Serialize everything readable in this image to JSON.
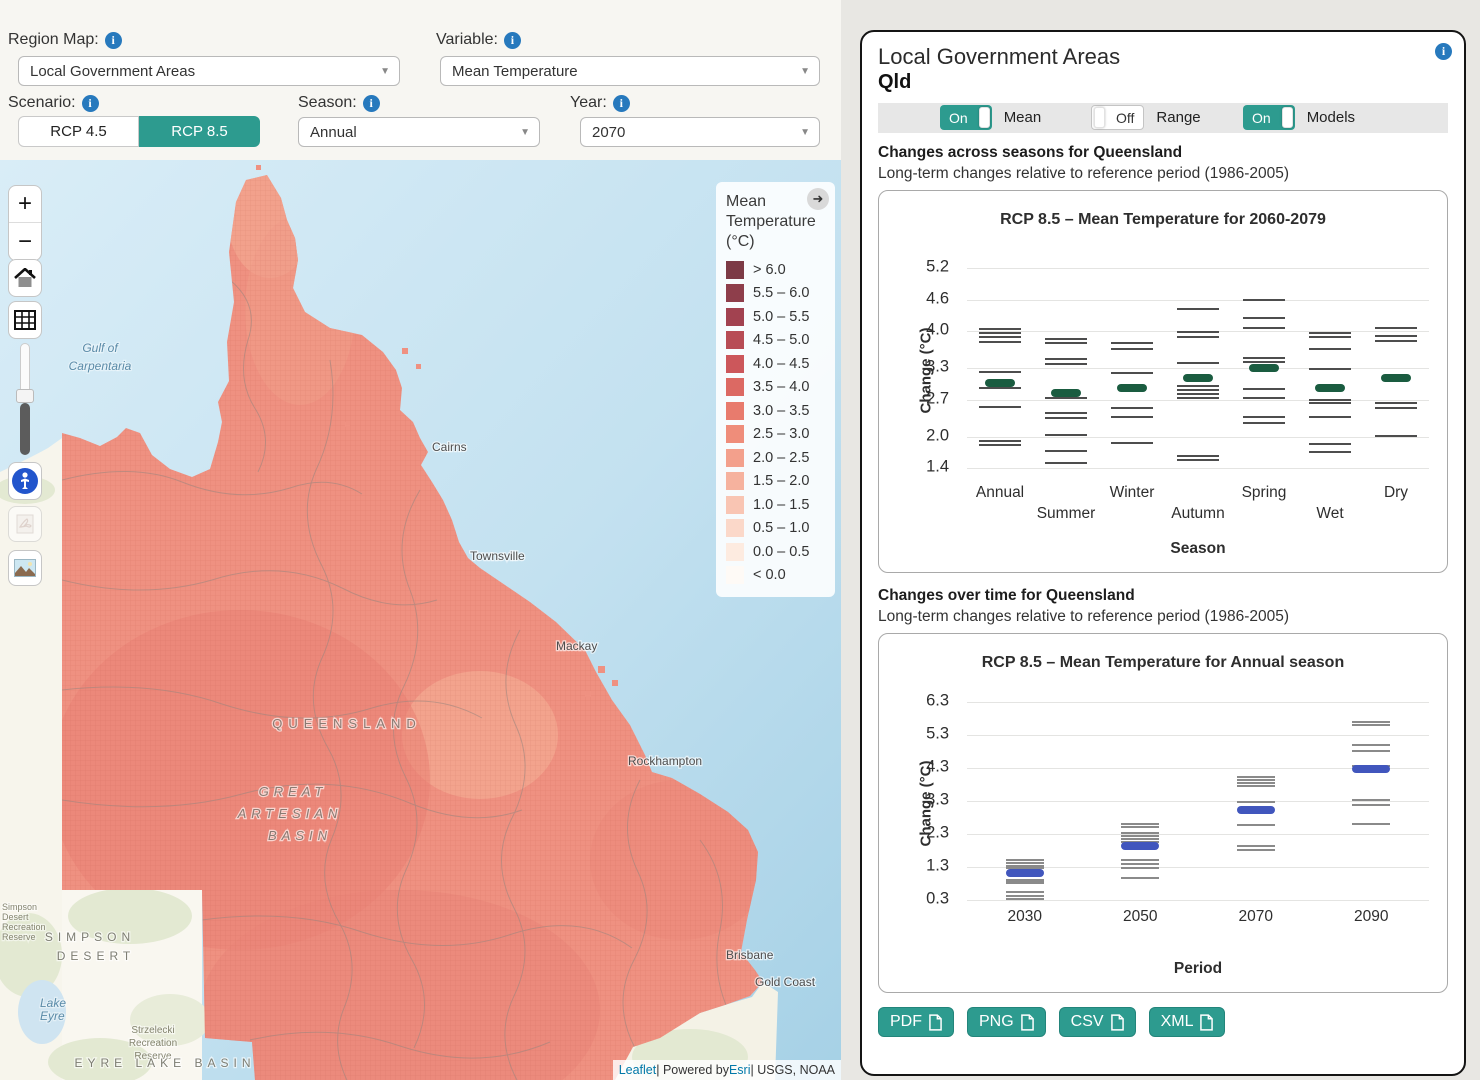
{
  "controls": {
    "region_map_label": "Region Map:",
    "region_map_value": "Local Government Areas",
    "variable_label": "Variable:",
    "variable_value": "Mean Temperature",
    "scenario_label": "Scenario:",
    "scenario_options": [
      "RCP 4.5",
      "RCP 8.5"
    ],
    "scenario_selected": "RCP 8.5",
    "season_label": "Season:",
    "season_value": "Annual",
    "year_label": "Year:",
    "year_value": "2070"
  },
  "map": {
    "controls": {
      "zoom_in": "+",
      "zoom_out": "−"
    },
    "legend": {
      "title_1": "Mean",
      "title_2": "Temperature",
      "title_3": "(°C)",
      "items": [
        {
          "label": "> 6.0",
          "color": "#7c3a46"
        },
        {
          "label": "5.5 – 6.0",
          "color": "#8e3e4b"
        },
        {
          "label": "5.0 – 5.5",
          "color": "#a24250"
        },
        {
          "label": "4.5 – 5.0",
          "color": "#b84c55"
        },
        {
          "label": "4.0 – 4.5",
          "color": "#cc575b"
        },
        {
          "label": "3.5 – 4.0",
          "color": "#dc6963"
        },
        {
          "label": "3.0 – 3.5",
          "color": "#e87b6d"
        },
        {
          "label": "2.5 – 3.0",
          "color": "#ef8d7a"
        },
        {
          "label": "2.0 – 2.5",
          "color": "#f3a08c"
        },
        {
          "label": "1.5 – 2.0",
          "color": "#f6b29e"
        },
        {
          "label": "1.0 – 1.5",
          "color": "#f9c5b3"
        },
        {
          "label": "0.5 – 1.0",
          "color": "#fbd8c9"
        },
        {
          "label": "0.0 – 0.5",
          "color": "#fdebe0"
        },
        {
          "label": "< 0.0",
          "color": "#fefaf6"
        }
      ]
    },
    "labels": {
      "gulf_1": "Gulf of",
      "gulf_2": "Carpentaria",
      "cairns": "Cairns",
      "townsville": "Townsville",
      "mackay": "Mackay",
      "rockhampton": "Rockhampton",
      "brisbane": "Brisbane",
      "gold_coast": "Gold Coast",
      "state": "QUEENSLAND",
      "basin_1": "GREAT",
      "basin_2": "ARTESIAN",
      "basin_3": "BASIN",
      "simpson_1": "SIMPSON",
      "simpson_2": "DESERT",
      "lake_eyre_1": "Lake",
      "lake_eyre_2": "Eyre",
      "strzelecki_1": "Strzelecki",
      "strzelecki_2": "Recreation",
      "strzelecki_3": "Reserve",
      "eyre_basin": "EYRE LAKE BASIN",
      "sd_reserve_1": "Simpson",
      "sd_reserve_2": "Desert",
      "sd_reserve_3": "Recreation",
      "sd_reserve_4": "Reserve"
    },
    "attribution": {
      "leaflet": "Leaflet",
      "sep1": " | Powered by ",
      "esri": "Esri",
      "sep2": " | USGS, NOAA"
    }
  },
  "panel": {
    "title": "Local Government Areas",
    "subtitle": "Qld",
    "toggles": [
      {
        "label": "Mean",
        "state": "On"
      },
      {
        "label": "Range",
        "state": "Off"
      },
      {
        "label": "Models",
        "state": "On"
      }
    ],
    "sections": [
      {
        "heading": "Changes across seasons for Queensland",
        "subheading": "Long-term changes relative to reference period (1986-2005)"
      },
      {
        "heading": "Changes over time for Queensland",
        "subheading": "Long-term changes relative to reference period (1986-2005)"
      }
    ],
    "export_buttons": [
      "PDF",
      "PNG",
      "CSV",
      "XML"
    ]
  },
  "chart_data": [
    {
      "type": "scatter",
      "title": "RCP 8.5 – Mean Temperature for 2060-2079",
      "xlabel": "Season",
      "ylabel": "Change (°C)",
      "categories": [
        "Annual",
        "Summer",
        "Winter",
        "Autumn",
        "Spring",
        "Wet",
        "Dry"
      ],
      "yticks": [
        5.2,
        4.6,
        4.0,
        3.3,
        2.7,
        2.0,
        1.4
      ],
      "ylim": [
        1.25,
        5.45
      ],
      "stagger": true,
      "mean_color": "#1a5c40",
      "model_color": "#4d4d4d",
      "mean_w": 30,
      "model_w": 42,
      "means": [
        3.01,
        2.83,
        2.93,
        3.11,
        3.31,
        2.93,
        3.11
      ],
      "models": [
        [
          4.05,
          3.96,
          3.89,
          3.8,
          3.22,
          2.93,
          2.56,
          1.92,
          1.83
        ],
        [
          3.86,
          3.78,
          3.47,
          3.38,
          2.74,
          2.45,
          2.36,
          2.02,
          1.73,
          1.5
        ],
        [
          3.78,
          3.67,
          3.21,
          2.55,
          2.37,
          1.88
        ],
        [
          4.43,
          3.99,
          3.9,
          3.39,
          2.96,
          2.89,
          2.81,
          2.73,
          1.63,
          1.56
        ],
        [
          4.6,
          4.25,
          4.07,
          3.49,
          3.41,
          2.91,
          2.73,
          2.37,
          2.26
        ],
        [
          3.96,
          3.9,
          3.67,
          3.29,
          2.69,
          2.63,
          2.37,
          1.85,
          1.71
        ],
        [
          4.06,
          3.91,
          3.81,
          2.63,
          2.55,
          2.01
        ]
      ],
      "legend_position": "none",
      "grid": true
    },
    {
      "type": "scatter",
      "title": "RCP 8.5 – Mean Temperature for Annual season",
      "xlabel": "Period",
      "ylabel": "Change (°C)",
      "categories": [
        "2030",
        "2050",
        "2070",
        "2090"
      ],
      "yticks": [
        6.3,
        5.3,
        4.3,
        3.3,
        2.3,
        1.3,
        0.3
      ],
      "ylim": [
        0.05,
        6.6
      ],
      "stagger": false,
      "mean_color": "#4156bd",
      "model_color": "#8a8a8a",
      "mean_w": 38,
      "model_w": 38,
      "means": [
        1.12,
        1.92,
        3.03,
        4.25
      ],
      "models": [
        [
          1.51,
          1.41,
          1.33,
          1.25,
          0.89,
          0.85,
          0.8,
          0.53,
          0.42,
          0.33
        ],
        [
          2.59,
          2.5,
          2.32,
          2.23,
          2.14,
          2.05,
          1.51,
          1.38,
          1.26,
          0.95
        ],
        [
          4.01,
          3.92,
          3.83,
          3.74,
          3.27,
          2.56,
          1.94,
          1.82
        ],
        [
          5.7,
          5.59,
          4.99,
          4.8,
          4.37,
          3.31,
          3.17,
          2.61
        ]
      ],
      "legend_position": "none",
      "grid": true
    }
  ]
}
